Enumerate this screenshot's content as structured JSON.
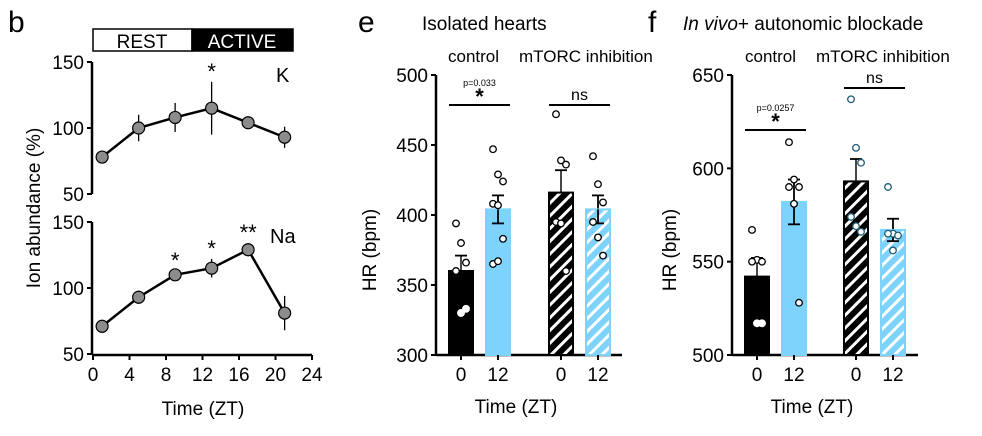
{
  "colors": {
    "black": "#000000",
    "blue": "#7dd3fc",
    "marker_gray": "#8c8c8c",
    "teal_outline": "#1f5a73",
    "white": "#ffffff"
  },
  "chart_data": [
    {
      "panel": "b",
      "type": "line",
      "time_bar": {
        "rest_label": "REST",
        "active_label": "ACTIVE"
      },
      "xlabel": "Time (ZT)",
      "ylabel": "Ion abundance (%)",
      "xlim": [
        0,
        24
      ],
      "xticks": [
        0,
        4,
        8,
        12,
        16,
        20,
        24
      ],
      "subplots": [
        {
          "name": "K",
          "ylim": [
            50,
            150
          ],
          "yticks": [
            50,
            100,
            150
          ],
          "x": [
            1,
            5,
            9,
            13,
            17,
            21
          ],
          "y": [
            78,
            100,
            108,
            115,
            104,
            93
          ],
          "err": [
            1,
            10,
            11,
            20,
            2,
            8
          ],
          "annotations": [
            {
              "x": 13,
              "label": "*"
            }
          ]
        },
        {
          "name": "Na",
          "ylim": [
            50,
            150
          ],
          "yticks": [
            50,
            100,
            150
          ],
          "x": [
            1,
            5,
            9,
            13,
            17,
            21
          ],
          "y": [
            71,
            93,
            110,
            115,
            129,
            81
          ],
          "err": [
            2,
            5,
            3,
            7,
            5,
            13
          ],
          "annotations": [
            {
              "x": 9,
              "label": "*"
            },
            {
              "x": 13,
              "label": "*"
            },
            {
              "x": 17,
              "label": "**"
            }
          ]
        }
      ]
    },
    {
      "panel": "e",
      "type": "bar",
      "title": "Isolated hearts",
      "groups": [
        "control",
        "mTORC inhibition"
      ],
      "categories": [
        "0",
        "12",
        "0",
        "12"
      ],
      "xlabel": "Time (ZT)",
      "ylabel": "HR (bpm)",
      "ylim": [
        300,
        500
      ],
      "yticks": [
        300,
        350,
        400,
        450,
        500
      ],
      "bars": [
        {
          "group": "control",
          "zt": "0",
          "mean": 360,
          "sem": 11,
          "fill": "black",
          "hatched": false,
          "points": [
            394,
            380,
            366,
            360,
            330,
            333
          ]
        },
        {
          "group": "control",
          "zt": "12",
          "mean": 404,
          "sem": 10,
          "fill": "blue",
          "hatched": false,
          "points": [
            447,
            429,
            424,
            408,
            407,
            383,
            365,
            367
          ]
        },
        {
          "group": "mTORC inhibition",
          "zt": "0",
          "mean": 416,
          "sem": 16,
          "fill": "black",
          "hatched": true,
          "points": [
            472,
            439,
            436,
            395,
            394,
            360
          ]
        },
        {
          "group": "mTORC inhibition",
          "zt": "12",
          "mean": 404,
          "sem": 10,
          "fill": "blue",
          "hatched": true,
          "points": [
            442,
            422,
            409,
            395,
            384,
            371
          ]
        }
      ],
      "comparisons": [
        {
          "group": "control",
          "stars": "*",
          "pvalue": "p=0.033"
        },
        {
          "group": "mTORC inhibition",
          "label": "ns"
        }
      ]
    },
    {
      "panel": "f",
      "type": "bar",
      "title_italic": "In vivo",
      "title_rest": "+ autonomic blockade",
      "groups": [
        "control",
        "mTORC inhibition"
      ],
      "categories": [
        "0",
        "12",
        "0",
        "12"
      ],
      "xlabel": "Time (ZT)",
      "ylabel": "HR (bpm)",
      "ylim": [
        500,
        650
      ],
      "yticks": [
        500,
        550,
        600,
        650
      ],
      "bars": [
        {
          "group": "control",
          "zt": "0",
          "mean": 542,
          "sem": 10,
          "fill": "black",
          "hatched": false,
          "points": [
            567,
            551,
            550,
            550,
            517,
            517
          ]
        },
        {
          "group": "control",
          "zt": "12",
          "mean": 582,
          "sem": 12,
          "fill": "blue",
          "hatched": false,
          "points": [
            614,
            594,
            590,
            590,
            581,
            528
          ]
        },
        {
          "group": "mTORC inhibition",
          "zt": "0",
          "mean": 593,
          "sem": 12,
          "fill": "black",
          "hatched": true,
          "points": [
            637,
            611,
            603,
            574,
            569,
            566
          ]
        },
        {
          "group": "mTORC inhibition",
          "zt": "12",
          "mean": 567,
          "sem": 6,
          "fill": "blue",
          "hatched": true,
          "points": [
            590,
            565,
            564,
            565,
            556
          ]
        }
      ],
      "comparisons": [
        {
          "group": "control",
          "stars": "*",
          "pvalue": "p=0.0257"
        },
        {
          "group": "mTORC inhibition",
          "label": "ns"
        }
      ]
    }
  ],
  "labels": {
    "panel_b": "b",
    "panel_e": "e",
    "panel_f": "f"
  }
}
